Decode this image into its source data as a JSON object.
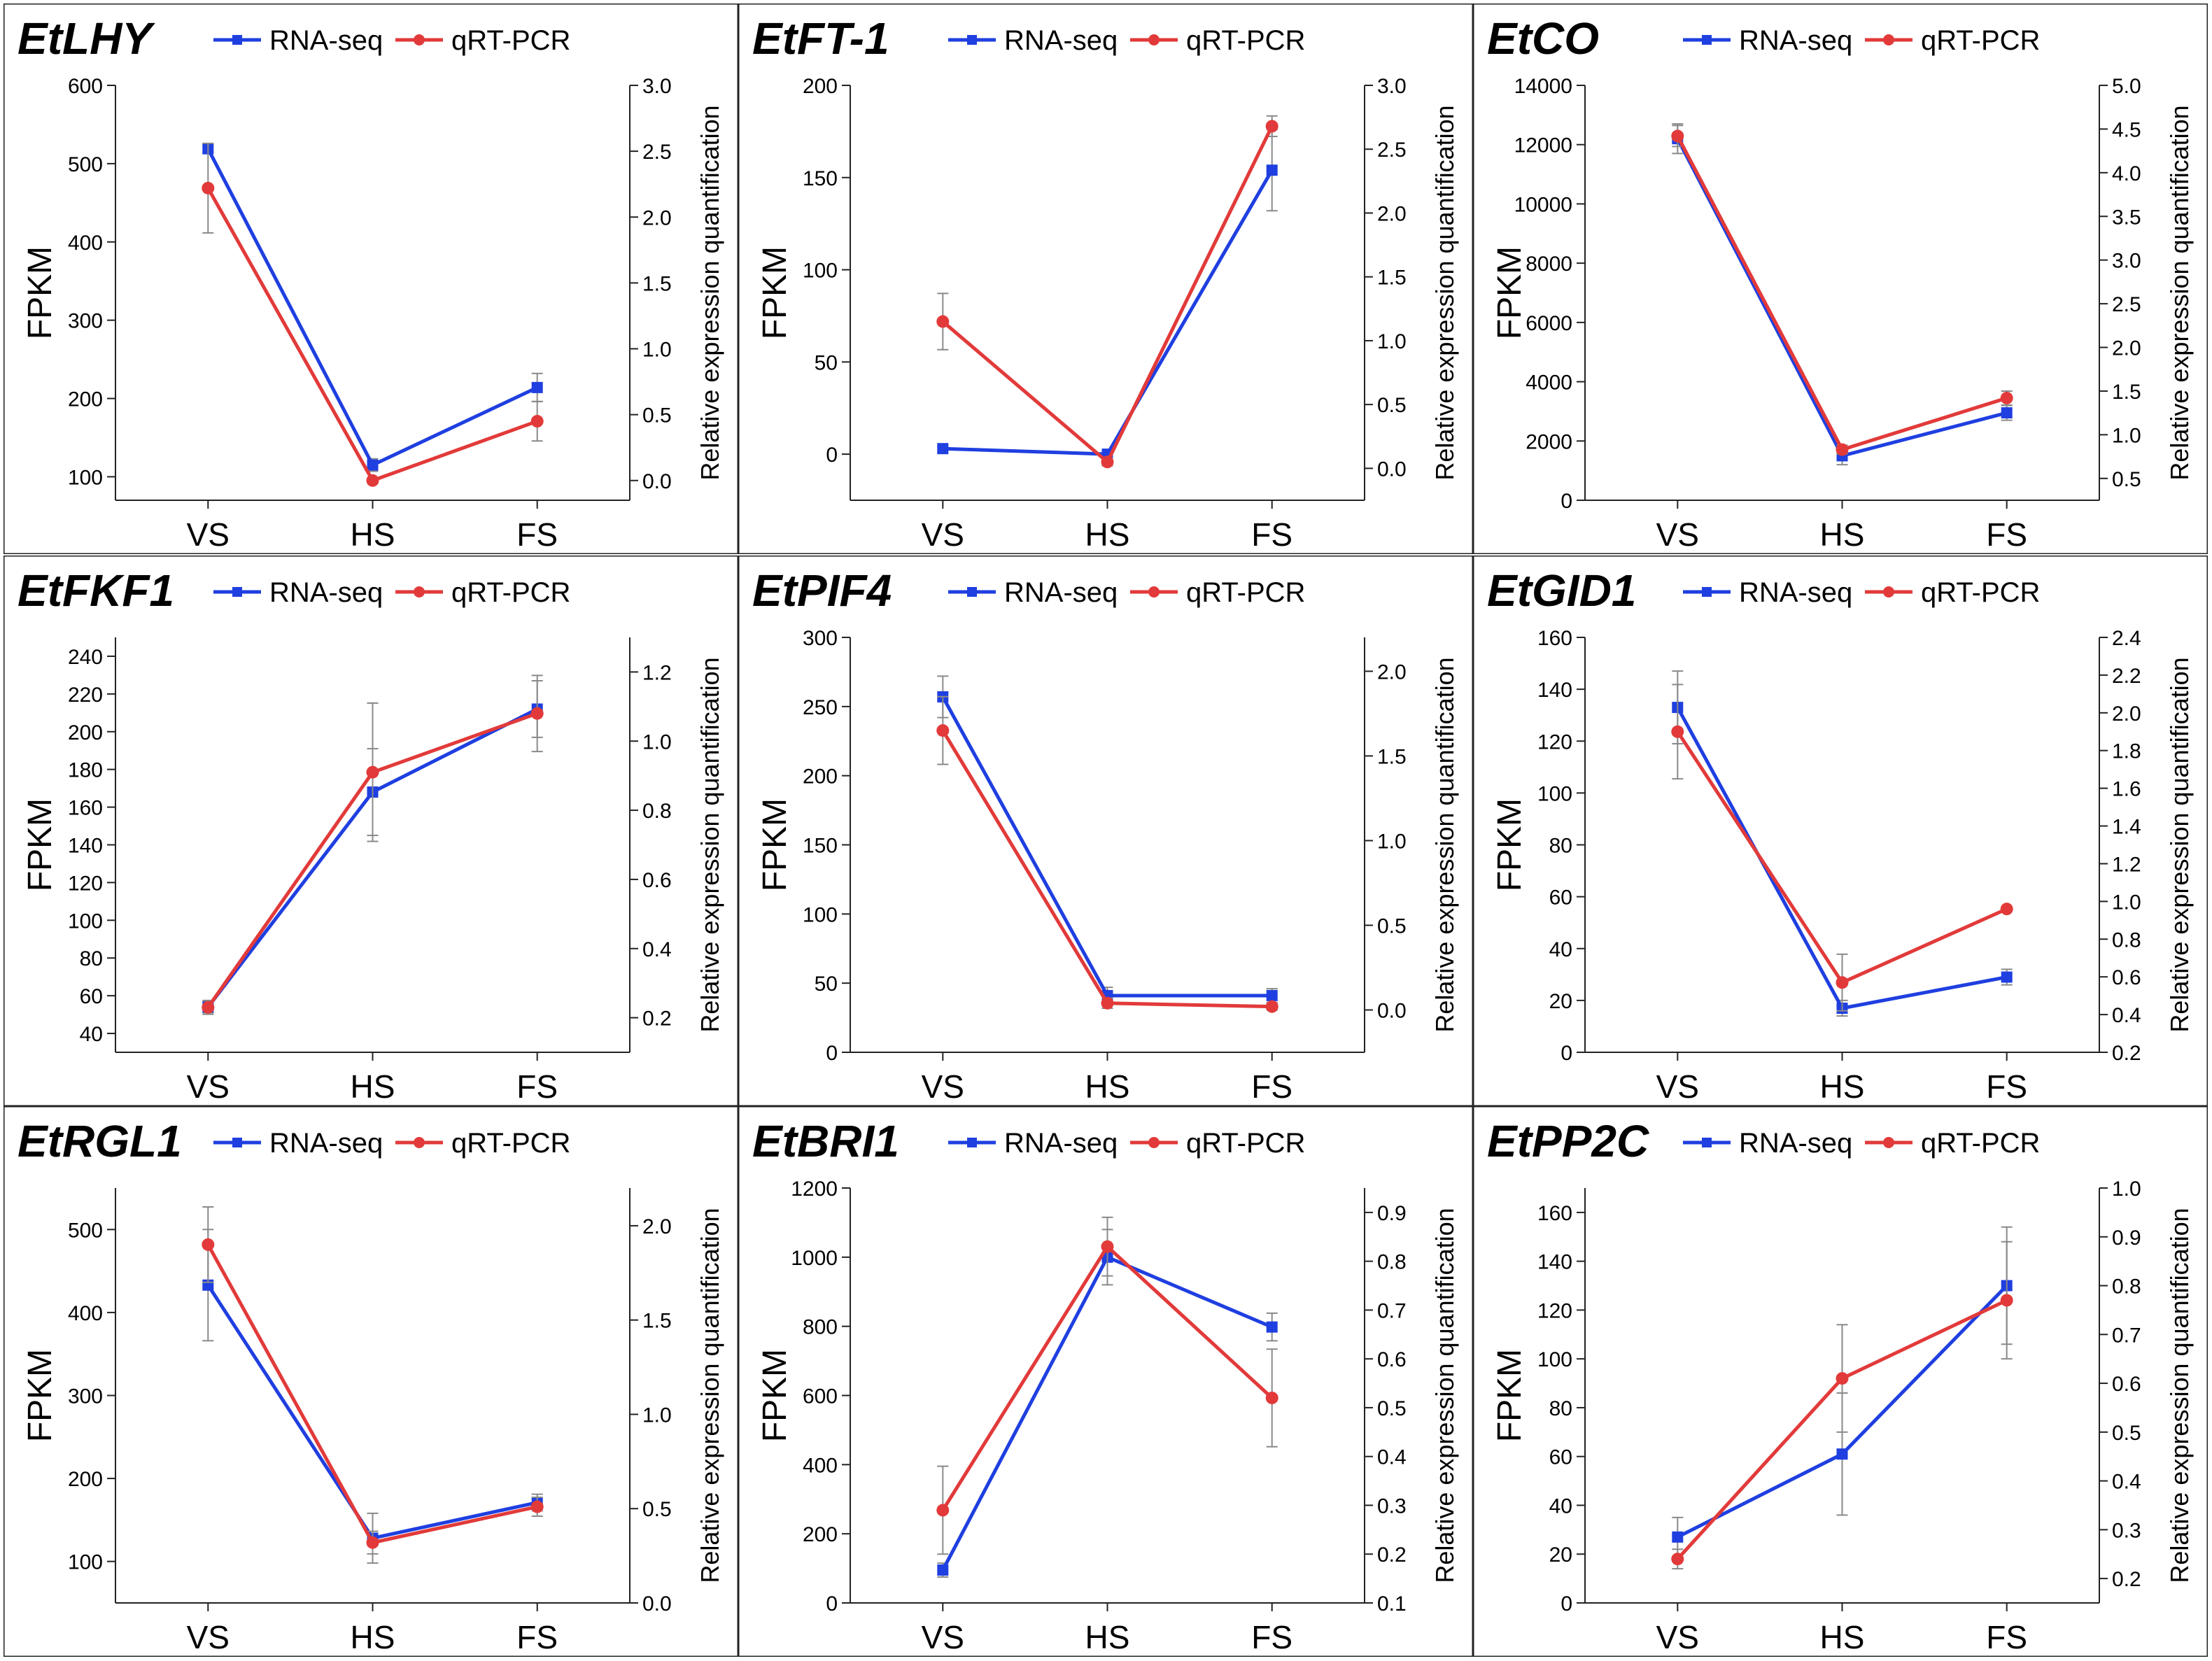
{
  "legend": {
    "rna_label": "RNA-seq",
    "qpcr_label": "qRT-PCR"
  },
  "axis_labels": {
    "left": "FPKM",
    "right": "Relative expression quantification"
  },
  "colors": {
    "rna": "#1f3fe0",
    "qpcr": "#e23a3a",
    "error": "#8a8a8a",
    "axis": "#222222",
    "frame": "#222222"
  },
  "chart_data": [
    {
      "type": "line",
      "title": "EtLHY",
      "categories": [
        "VS",
        "HS",
        "FS"
      ],
      "ylabel": "FPKM",
      "y2label": "Relative expression quantification",
      "ylim": [
        70,
        600
      ],
      "yticks": [
        100,
        200,
        300,
        400,
        500,
        600
      ],
      "y2lim": [
        -0.15,
        3.0
      ],
      "y2ticks": [
        0.0,
        0.5,
        1.0,
        1.5,
        2.0,
        2.5,
        3.0
      ],
      "series": [
        {
          "name": "RNA-seq",
          "axis": "left",
          "values": [
            519,
            115,
            214
          ],
          "errors": [
            5,
            8,
            18
          ]
        },
        {
          "name": "qRT-PCR",
          "axis": "right",
          "values": [
            2.22,
            0.0,
            0.45
          ],
          "errors": [
            0.34,
            0.02,
            0.15
          ]
        }
      ]
    },
    {
      "type": "line",
      "title": "EtFT-1",
      "categories": [
        "VS",
        "HS",
        "FS"
      ],
      "ylabel": "FPKM",
      "y2label": "Relative expression quantification",
      "ylim": [
        -25,
        200
      ],
      "yticks": [
        0,
        50,
        100,
        150,
        200
      ],
      "y2lim": [
        -0.25,
        3.0
      ],
      "y2ticks": [
        0.0,
        0.5,
        1.0,
        1.5,
        2.0,
        2.5,
        3.0
      ],
      "series": [
        {
          "name": "RNA-seq",
          "axis": "left",
          "values": [
            3,
            0,
            154
          ],
          "errors": [
            1,
            1,
            22
          ]
        },
        {
          "name": "qRT-PCR",
          "axis": "right",
          "values": [
            1.15,
            0.05,
            2.68
          ],
          "errors": [
            0.22,
            0.03,
            0.08
          ]
        }
      ]
    },
    {
      "type": "line",
      "title": "EtCO",
      "categories": [
        "VS",
        "HS",
        "FS"
      ],
      "ylabel": "FPKM",
      "y2label": "Relative expression quantification",
      "ylim": [
        0,
        14000
      ],
      "yticks": [
        0,
        2000,
        4000,
        6000,
        8000,
        10000,
        12000,
        14000
      ],
      "y2lim": [
        0.25,
        5.0
      ],
      "y2ticks": [
        0.5,
        1.0,
        1.5,
        2.0,
        2.5,
        3.0,
        3.5,
        4.0,
        4.5,
        5.0
      ],
      "series": [
        {
          "name": "RNA-seq",
          "axis": "left",
          "values": [
            12200,
            1500,
            2950
          ],
          "errors": [
            500,
            300,
            250
          ]
        },
        {
          "name": "qRT-PCR",
          "axis": "right",
          "values": [
            4.42,
            0.83,
            1.42
          ],
          "errors": [
            0.12,
            0.05,
            0.08
          ]
        }
      ]
    },
    {
      "type": "line",
      "title": "EtFKF1",
      "categories": [
        "VS",
        "HS",
        "FS"
      ],
      "ylabel": "FPKM",
      "y2label": "Relative expression quantification",
      "ylim": [
        30,
        250
      ],
      "yticks": [
        40,
        60,
        80,
        100,
        120,
        140,
        160,
        180,
        200,
        220,
        240
      ],
      "y2lim": [
        0.1,
        1.3
      ],
      "y2ticks": [
        0.2,
        0.4,
        0.6,
        0.8,
        1.0,
        1.2
      ],
      "series": [
        {
          "name": "RNA-seq",
          "axis": "left",
          "values": [
            54,
            168,
            212
          ],
          "errors": [
            3,
            23,
            15
          ]
        },
        {
          "name": "qRT-PCR",
          "axis": "right",
          "values": [
            0.23,
            0.91,
            1.08
          ],
          "errors": [
            0.02,
            0.2,
            0.11
          ]
        }
      ]
    },
    {
      "type": "line",
      "title": "EtPIF4",
      "categories": [
        "VS",
        "HS",
        "FS"
      ],
      "ylabel": "FPKM",
      "y2label": "Relative expression quantification",
      "ylim": [
        0,
        300
      ],
      "yticks": [
        0,
        50,
        100,
        150,
        200,
        250,
        300
      ],
      "y2lim": [
        -0.25,
        2.2
      ],
      "y2ticks": [
        0.0,
        0.5,
        1.0,
        1.5,
        2.0
      ],
      "series": [
        {
          "name": "RNA-seq",
          "axis": "left",
          "values": [
            257,
            41,
            41
          ],
          "errors": [
            15,
            6,
            5
          ]
        },
        {
          "name": "qRT-PCR",
          "axis": "right",
          "values": [
            1.65,
            0.04,
            0.02
          ],
          "errors": [
            0.2,
            0.03,
            0.02
          ]
        }
      ]
    },
    {
      "type": "line",
      "title": "EtGID1",
      "categories": [
        "VS",
        "HS",
        "FS"
      ],
      "ylabel": "FPKM",
      "y2label": "Relative expression quantification",
      "ylim": [
        0,
        160
      ],
      "yticks": [
        0,
        20,
        40,
        60,
        80,
        100,
        120,
        140,
        160
      ],
      "y2lim": [
        0.2,
        2.4
      ],
      "y2ticks": [
        0.2,
        0.4,
        0.6,
        0.8,
        1.0,
        1.2,
        1.4,
        1.6,
        1.8,
        2.0,
        2.2,
        2.4
      ],
      "series": [
        {
          "name": "RNA-seq",
          "axis": "left",
          "values": [
            133,
            17,
            29
          ],
          "errors": [
            14,
            3,
            3
          ]
        },
        {
          "name": "qRT-PCR",
          "axis": "right",
          "values": [
            1.9,
            0.57,
            0.96
          ],
          "errors": [
            0.25,
            0.15,
            0.01
          ]
        }
      ]
    },
    {
      "type": "line",
      "title": "EtRGL1",
      "categories": [
        "VS",
        "HS",
        "FS"
      ],
      "ylabel": "FPKM",
      "y2label": "Relative expression quantification",
      "ylim": [
        50,
        550
      ],
      "yticks": [
        100,
        200,
        300,
        400,
        500
      ],
      "y2lim": [
        0.0,
        2.2
      ],
      "y2ticks": [
        0.0,
        0.5,
        1.0,
        1.5,
        2.0
      ],
      "series": [
        {
          "name": "RNA-seq",
          "axis": "left",
          "values": [
            433,
            128,
            171
          ],
          "errors": [
            67,
            30,
            10
          ]
        },
        {
          "name": "qRT-PCR",
          "axis": "right",
          "values": [
            1.9,
            0.32,
            0.51
          ],
          "errors": [
            0.2,
            0.06,
            0.05
          ]
        }
      ]
    },
    {
      "type": "line",
      "title": "EtBRI1",
      "categories": [
        "VS",
        "HS",
        "FS"
      ],
      "ylabel": "FPKM",
      "y2label": "Relative expression quantification",
      "ylim": [
        0,
        1200
      ],
      "yticks": [
        0,
        200,
        400,
        600,
        800,
        1000,
        1200
      ],
      "y2lim": [
        0.1,
        0.95
      ],
      "y2ticks": [
        0.1,
        0.2,
        0.3,
        0.4,
        0.5,
        0.6,
        0.7,
        0.8,
        0.9
      ],
      "series": [
        {
          "name": "RNA-seq",
          "axis": "left",
          "values": [
            95,
            1000,
            798
          ],
          "errors": [
            20,
            80,
            40
          ]
        },
        {
          "name": "qRT-PCR",
          "axis": "right",
          "values": [
            0.29,
            0.83,
            0.52
          ],
          "errors": [
            0.09,
            0.06,
            0.1
          ]
        }
      ]
    },
    {
      "type": "line",
      "title": "EtPP2C",
      "categories": [
        "VS",
        "HS",
        "FS"
      ],
      "ylabel": "FPKM",
      "y2label": "Relative expression quantification",
      "ylim": [
        0,
        170
      ],
      "yticks": [
        0,
        20,
        40,
        60,
        80,
        100,
        120,
        140,
        160
      ],
      "y2lim": [
        0.15,
        1.0
      ],
      "y2ticks": [
        0.2,
        0.3,
        0.4,
        0.5,
        0.6,
        0.7,
        0.8,
        0.9,
        1.0
      ],
      "series": [
        {
          "name": "RNA-seq",
          "axis": "left",
          "values": [
            27,
            61,
            130
          ],
          "errors": [
            8,
            25,
            24
          ]
        },
        {
          "name": "qRT-PCR",
          "axis": "right",
          "values": [
            0.24,
            0.61,
            0.77
          ],
          "errors": [
            0.02,
            0.11,
            0.12
          ]
        }
      ]
    }
  ]
}
